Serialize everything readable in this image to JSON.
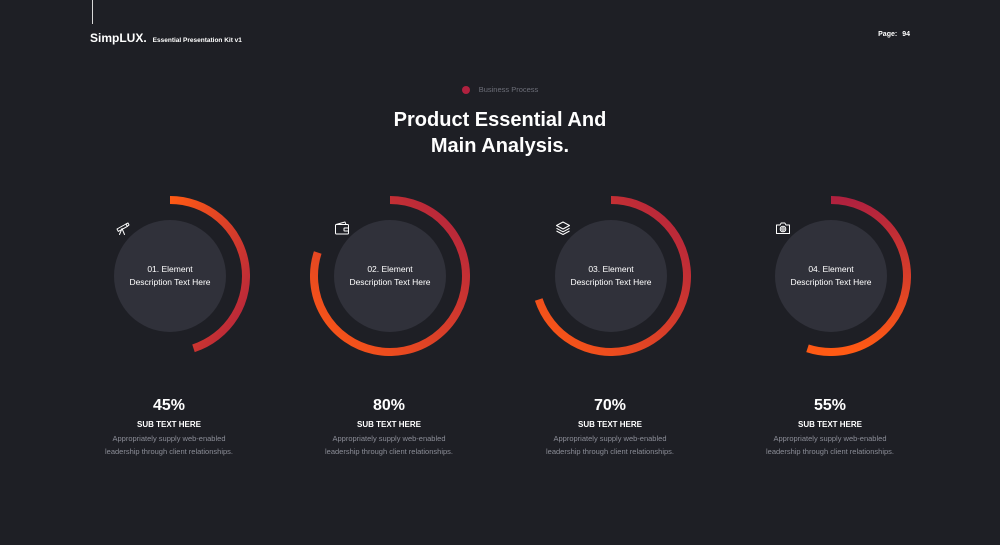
{
  "header": {
    "brand": "SimpLUX.",
    "subtitle": "Essential Presentation Kit v1",
    "page_label": "Page:",
    "page_number": "94"
  },
  "badge": {
    "text": "Business Process"
  },
  "title": {
    "line1": "Product Essential And",
    "line2": "Main Analysis."
  },
  "colors": {
    "background": "#1e1f25",
    "circle": "#30313a",
    "gradient_start": "#ff5a14",
    "gradient_end": "#b0213f"
  },
  "items": [
    {
      "icon": "telescope-icon",
      "label1": "01. Element",
      "label2": "Description Text Here",
      "percent_label": "45%",
      "percent": 45,
      "sub": "SUB TEXT HERE",
      "desc1": "Appropriately supply web-enabled",
      "desc2": "leadership through client relationships."
    },
    {
      "icon": "wallet-icon",
      "label1": "02. Element",
      "label2": "Description Text Here",
      "percent_label": "80%",
      "percent": 80,
      "sub": "SUB TEXT HERE",
      "desc1": "Appropriately supply web-enabled",
      "desc2": "leadership through client relationships."
    },
    {
      "icon": "layers-icon",
      "label1": "03. Element",
      "label2": "Description Text Here",
      "percent_label": "70%",
      "percent": 70,
      "sub": "SUB TEXT HERE",
      "desc1": "Appropriately supply web-enabled",
      "desc2": "leadership through client relationships."
    },
    {
      "icon": "camera-icon",
      "label1": "04. Element",
      "label2": "Description Text Here",
      "percent_label": "55%",
      "percent": 55,
      "sub": "SUB TEXT HERE",
      "desc1": "Appropriately supply web-enabled",
      "desc2": "leadership through client relationships."
    }
  ]
}
